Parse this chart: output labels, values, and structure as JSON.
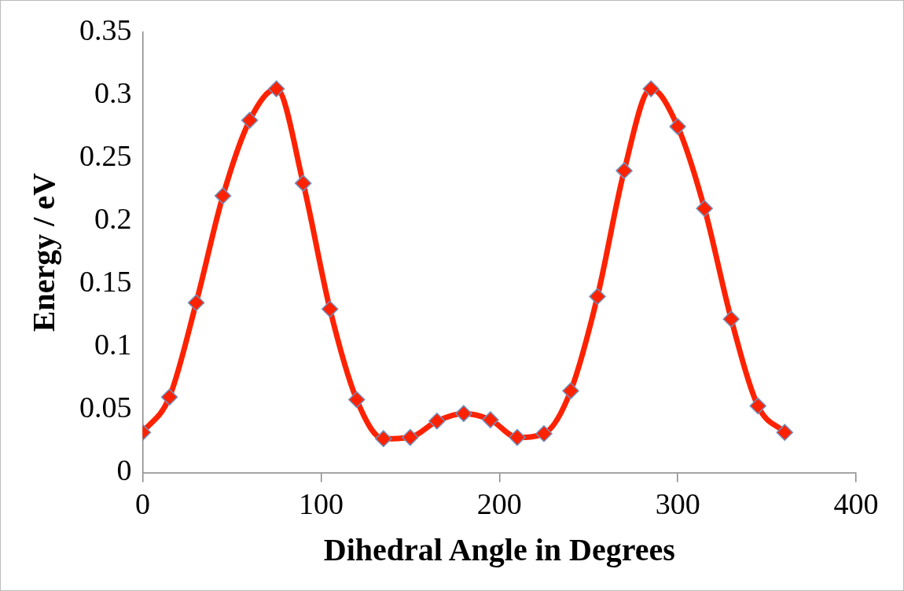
{
  "chart_data": {
    "type": "line",
    "xlabel": "Dihedral Angle in Degrees",
    "ylabel": "Energy / eV",
    "x": [
      0,
      15,
      30,
      45,
      60,
      75,
      90,
      105,
      120,
      135,
      150,
      165,
      180,
      195,
      210,
      225,
      240,
      255,
      270,
      285,
      300,
      315,
      330,
      345,
      360
    ],
    "series": [
      {
        "color": "#ff2200",
        "values": [
          0.032,
          0.06,
          0.135,
          0.22,
          0.28,
          0.305,
          0.23,
          0.13,
          0.058,
          0.027,
          0.028,
          0.041,
          0.047,
          0.042,
          0.028,
          0.031,
          0.065,
          0.14,
          0.24,
          0.305,
          0.275,
          0.21,
          0.122,
          0.053,
          0.032
        ]
      }
    ],
    "xlim": [
      0,
      400
    ],
    "xticks": [
      0,
      100,
      200,
      300,
      400
    ],
    "ylim": [
      0,
      0.35
    ],
    "yticks": [
      0,
      0.05,
      0.1,
      0.15,
      0.2,
      0.25,
      0.3,
      0.35
    ],
    "grid": false,
    "legend": false,
    "marker": "diamond",
    "line_style": "solid"
  }
}
